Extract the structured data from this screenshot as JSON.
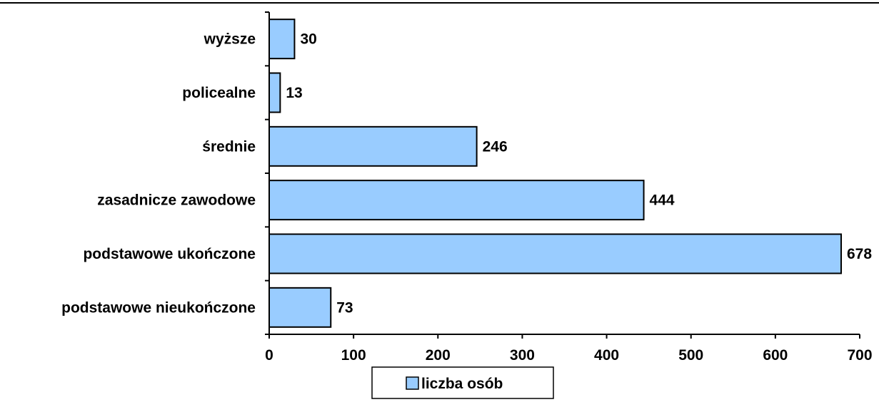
{
  "chart_data": {
    "type": "bar",
    "orientation": "horizontal",
    "title": "",
    "xlabel": "",
    "ylabel": "",
    "categories": [
      "podstawowe nieukończone",
      "podstawowe ukończone",
      "zasadnicze zawodowe",
      "średnie",
      "policealne",
      "wyższe"
    ],
    "series": [
      {
        "name": "liczba osób",
        "values": [
          73,
          678,
          444,
          246,
          13,
          30
        ],
        "color": "#99ccff"
      }
    ],
    "xlim": [
      0,
      700
    ],
    "xticks": [
      0,
      100,
      200,
      300,
      400,
      500,
      600,
      700
    ],
    "grid": false,
    "data_labels": true,
    "legend": {
      "position": "bottom",
      "label": "liczba osób"
    },
    "colors": {
      "bar_fill": "#99ccff",
      "bar_stroke": "#000000",
      "axis": "#000000",
      "frame": "#000000"
    }
  }
}
